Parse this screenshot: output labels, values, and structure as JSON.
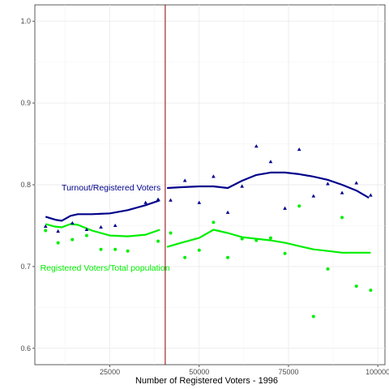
{
  "chart_data": {
    "type": "scatter",
    "title": "",
    "xlabel": "Number of Registered Voters - 1996",
    "ylabel": "",
    "xlim": [
      4000,
      102000
    ],
    "ylim": [
      0.58,
      1.02
    ],
    "x_ticks": [
      25000,
      50000,
      75000,
      100000
    ],
    "x_tick_labels": [
      "25000",
      "50000",
      "75000",
      "100000"
    ],
    "y_ticks": [
      0.6,
      0.7,
      0.8,
      0.9,
      1.0
    ],
    "y_tick_labels": [
      "0.6",
      "0.7",
      "0.8",
      "0.9",
      "1.0"
    ],
    "grid": true,
    "vline": {
      "x": 40500,
      "color": "#8b0000"
    },
    "series": [
      {
        "name": "Turnout/Registered Voters",
        "color": "#00008b",
        "marker": "triangle",
        "points": [
          [
            7000,
            0.749
          ],
          [
            10500,
            0.743
          ],
          [
            14500,
            0.753
          ],
          [
            18500,
            0.745
          ],
          [
            22500,
            0.748
          ],
          [
            26500,
            0.75
          ],
          [
            35000,
            0.778
          ],
          [
            38500,
            0.782
          ],
          [
            42000,
            0.781
          ],
          [
            46000,
            0.805
          ],
          [
            50000,
            0.778
          ],
          [
            54000,
            0.81
          ],
          [
            58000,
            0.766
          ],
          [
            62000,
            0.798
          ],
          [
            66000,
            0.847
          ],
          [
            70000,
            0.828
          ],
          [
            74000,
            0.771
          ],
          [
            78000,
            0.843
          ],
          [
            82000,
            0.786
          ],
          [
            86000,
            0.801
          ],
          [
            90000,
            0.79
          ],
          [
            94000,
            0.802
          ],
          [
            98000,
            0.787
          ]
        ],
        "smooth_left": [
          [
            7000,
            0.761
          ],
          [
            10000,
            0.757
          ],
          [
            11500,
            0.756
          ],
          [
            14000,
            0.762
          ],
          [
            16000,
            0.764
          ],
          [
            20000,
            0.764
          ],
          [
            25000,
            0.765
          ],
          [
            30000,
            0.769
          ],
          [
            35000,
            0.775
          ],
          [
            39000,
            0.781
          ]
        ],
        "smooth_right": [
          [
            41000,
            0.796
          ],
          [
            45000,
            0.797
          ],
          [
            50000,
            0.798
          ],
          [
            54000,
            0.798
          ],
          [
            58000,
            0.796
          ],
          [
            62000,
            0.805
          ],
          [
            66000,
            0.812
          ],
          [
            70000,
            0.815
          ],
          [
            74000,
            0.815
          ],
          [
            78000,
            0.813
          ],
          [
            82000,
            0.81
          ],
          [
            86000,
            0.806
          ],
          [
            90000,
            0.8
          ],
          [
            94000,
            0.793
          ],
          [
            97500,
            0.784
          ]
        ],
        "label_position": [
          11500,
          0.797
        ]
      },
      {
        "name": "Registered Voters/Total population",
        "color": "#00ee00",
        "marker": "circle",
        "points": [
          [
            7000,
            0.744
          ],
          [
            10500,
            0.729
          ],
          [
            14500,
            0.733
          ],
          [
            18500,
            0.738
          ],
          [
            22500,
            0.721
          ],
          [
            26500,
            0.721
          ],
          [
            30000,
            0.719
          ],
          [
            38500,
            0.731
          ],
          [
            42000,
            0.741
          ],
          [
            46000,
            0.711
          ],
          [
            50000,
            0.72
          ],
          [
            54000,
            0.754
          ],
          [
            58000,
            0.711
          ],
          [
            62000,
            0.734
          ],
          [
            66000,
            0.732
          ],
          [
            70000,
            0.735
          ],
          [
            74000,
            0.716
          ],
          [
            78000,
            0.774
          ],
          [
            82000,
            0.639
          ],
          [
            86000,
            0.697
          ],
          [
            90000,
            0.76
          ],
          [
            94000,
            0.676
          ],
          [
            98000,
            0.671
          ]
        ],
        "smooth_left": [
          [
            7000,
            0.752
          ],
          [
            9500,
            0.749
          ],
          [
            11500,
            0.748
          ],
          [
            14000,
            0.752
          ],
          [
            16000,
            0.751
          ],
          [
            20000,
            0.744
          ],
          [
            25000,
            0.738
          ],
          [
            30000,
            0.737
          ],
          [
            35000,
            0.739
          ],
          [
            39000,
            0.745
          ]
        ],
        "smooth_right": [
          [
            41000,
            0.724
          ],
          [
            45000,
            0.729
          ],
          [
            50000,
            0.735
          ],
          [
            54000,
            0.745
          ],
          [
            58000,
            0.741
          ],
          [
            62000,
            0.736
          ],
          [
            66000,
            0.734
          ],
          [
            70000,
            0.732
          ],
          [
            74000,
            0.729
          ],
          [
            78000,
            0.725
          ],
          [
            82000,
            0.721
          ],
          [
            86000,
            0.719
          ],
          [
            90000,
            0.717
          ],
          [
            94000,
            0.717
          ],
          [
            98000,
            0.717
          ]
        ],
        "label_position": [
          5500,
          0.699
        ]
      }
    ]
  }
}
